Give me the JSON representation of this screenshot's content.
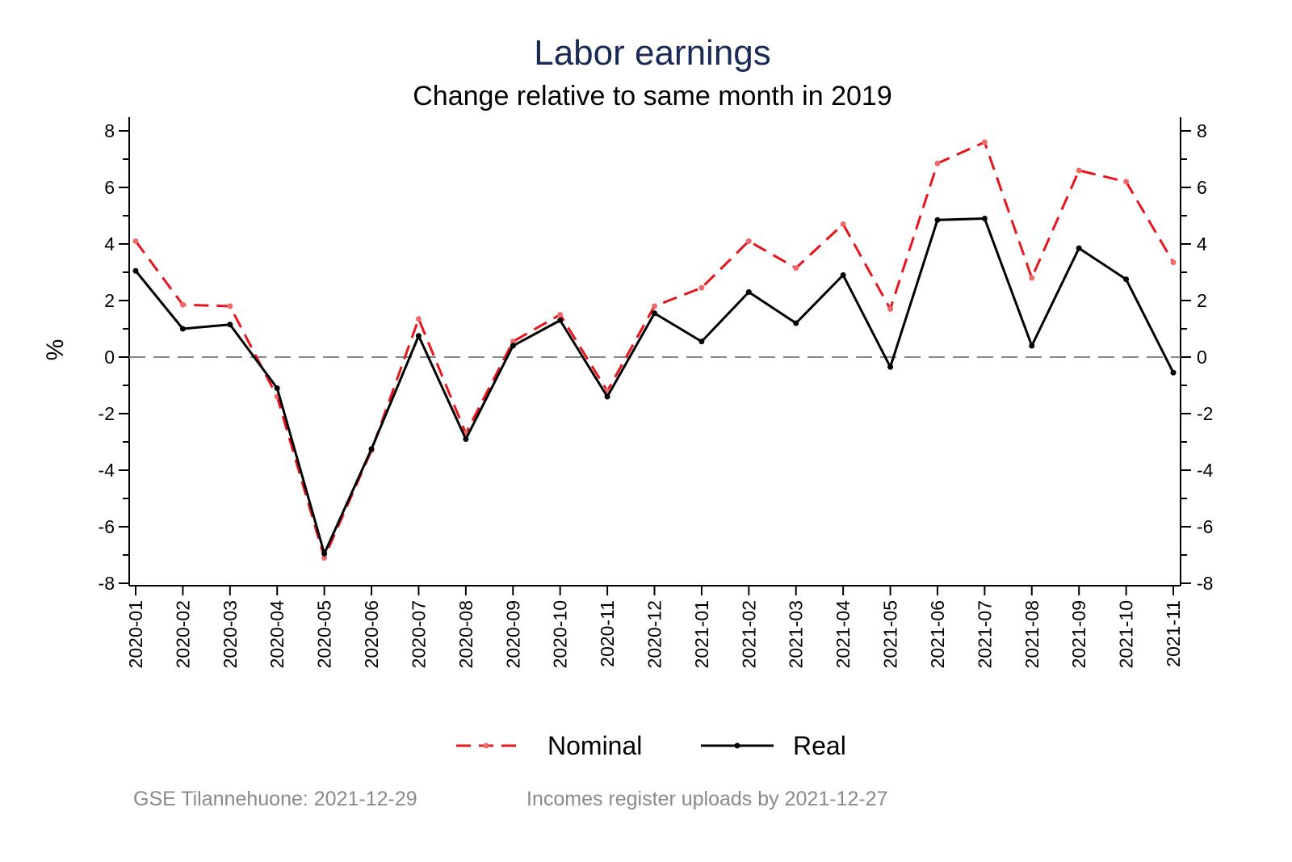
{
  "chart_data": {
    "type": "line",
    "title": "Labor earnings",
    "subtitle": "Change relative to same month in 2019",
    "ylabel": "%",
    "xlabel": "",
    "ylim": [
      -8,
      8
    ],
    "yticks": [
      "8",
      "6",
      "4",
      "2",
      "0",
      "-2",
      "-4",
      "-6",
      "-8"
    ],
    "ytick_values": [
      8,
      6,
      4,
      2,
      0,
      -2,
      -4,
      -6,
      -8
    ],
    "categories": [
      "2020-01",
      "2020-02",
      "2020-03",
      "2020-04",
      "2020-05",
      "2020-06",
      "2020-07",
      "2020-08",
      "2020-09",
      "2020-10",
      "2020-11",
      "2020-12",
      "2021-01",
      "2021-02",
      "2021-03",
      "2021-04",
      "2021-05",
      "2021-06",
      "2021-07",
      "2021-08",
      "2021-09",
      "2021-10",
      "2021-11"
    ],
    "series": [
      {
        "name": "Nominal",
        "color": "#e8141c",
        "style": "dashed",
        "values": [
          4.1,
          1.85,
          1.8,
          -1.4,
          -7.1,
          -3.3,
          1.35,
          -2.7,
          0.55,
          1.5,
          -1.2,
          1.8,
          2.45,
          4.1,
          3.15,
          4.7,
          1.7,
          6.85,
          7.6,
          2.8,
          6.6,
          6.2,
          3.35
        ]
      },
      {
        "name": "Real",
        "color": "#000000",
        "style": "solid",
        "values": [
          3.05,
          1.0,
          1.15,
          -1.1,
          -6.95,
          -3.25,
          0.75,
          -2.9,
          0.4,
          1.3,
          -1.4,
          1.55,
          0.55,
          2.3,
          1.2,
          2.9,
          -0.35,
          4.85,
          4.9,
          0.4,
          3.85,
          2.75,
          -0.55
        ]
      }
    ],
    "reference_line": 0,
    "grid": false,
    "legend_position": "bottom",
    "notes": [
      "GSE Tilannehuone: 2021-12-29",
      "Incomes register uploads by 2021-12-27"
    ]
  }
}
